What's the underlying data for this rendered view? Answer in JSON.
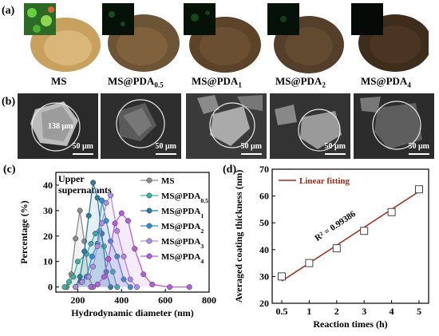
{
  "panel_a": {
    "letter": "(a)",
    "samples": [
      {
        "label": "MS",
        "sub": ""
      },
      {
        "label": "MS@PDA",
        "sub": "0.5"
      },
      {
        "label": "MS@PDA",
        "sub": "1"
      },
      {
        "label": "MS@PDA",
        "sub": "2"
      },
      {
        "label": "MS@PDA",
        "sub": "4"
      }
    ]
  },
  "panel_b": {
    "letter": "(b)",
    "size_note": "138 μm",
    "scale_label": "50 μm"
  },
  "chart_data": [
    {
      "panel": "(c)",
      "type": "line",
      "annotation": "Upper supernatants",
      "xlabel": "Hydrodynamic diameter (nm)",
      "ylabel": "Percentage (%)",
      "xlim": [
        100,
        800
      ],
      "ylim": [
        -2,
        45
      ],
      "xticks": [
        200,
        400,
        600,
        800
      ],
      "yticks": [
        0,
        10,
        20,
        30,
        40
      ],
      "legend_position": "top-right",
      "series": [
        {
          "name": "MS",
          "sub": "",
          "color": "#8a8a8a",
          "x": [
            150,
            170,
            190,
            210,
            230,
            250,
            270
          ],
          "y": [
            0,
            5,
            19,
            30,
            18,
            4,
            0
          ]
        },
        {
          "name": "MS@PDA",
          "sub": "0.5",
          "color": "#3cb3a2",
          "x": [
            140,
            160,
            180,
            200,
            240,
            260,
            280,
            300,
            320,
            340,
            360,
            380
          ],
          "y": [
            0,
            2,
            4,
            10,
            13,
            17,
            21,
            22,
            16,
            11,
            6,
            0
          ]
        },
        {
          "name": "MS@PDA",
          "sub": "1",
          "color": "#2f7ba0",
          "x": [
            190,
            210,
            230,
            250,
            270,
            290,
            310,
            330,
            350
          ],
          "y": [
            0,
            4,
            14,
            28,
            41,
            35,
            21,
            6,
            0
          ]
        },
        {
          "name": "MS@PDA",
          "sub": "2",
          "color": "#2c8fd1",
          "x": [
            190,
            215,
            240,
            265,
            290,
            310,
            330,
            350,
            380,
            410,
            440
          ],
          "y": [
            0,
            2,
            4,
            12,
            17,
            34,
            26,
            18,
            12,
            3,
            0
          ]
        },
        {
          "name": "MS@PDA",
          "sub": "3",
          "color": "#b08ce6",
          "x": [
            190,
            220,
            250,
            270,
            290,
            310,
            330,
            350,
            380,
            410,
            440,
            470
          ],
          "y": [
            0,
            2,
            4,
            8,
            16,
            25,
            33,
            36,
            22,
            12,
            3,
            0
          ]
        },
        {
          "name": "MS@PDA",
          "sub": "4",
          "color": "#b65ce0",
          "x": [
            260,
            290,
            320,
            340,
            370,
            400,
            430,
            460,
            500,
            540,
            620,
            710
          ],
          "y": [
            0,
            1,
            4,
            11,
            25,
            29,
            26,
            15,
            5,
            1,
            0,
            0
          ]
        }
      ]
    },
    {
      "panel": "(d)",
      "type": "scatter",
      "xlabel": "Reaction times (h)",
      "ylabel": "Averaged coating thickness (nm)",
      "categories": [
        "0.5",
        "1",
        "2",
        "3",
        "4",
        "5"
      ],
      "values": [
        30,
        35,
        40.5,
        47,
        54,
        62.5
      ],
      "ylim": [
        20,
        70
      ],
      "yticks": [
        20,
        30,
        40,
        50,
        60,
        70
      ],
      "legend": "Linear fitting",
      "legend_position": "top-left",
      "fit_label": "R² = 0.99386",
      "fit_color": "#9b2a15",
      "fit": [
        28.3,
        61.7
      ]
    }
  ]
}
